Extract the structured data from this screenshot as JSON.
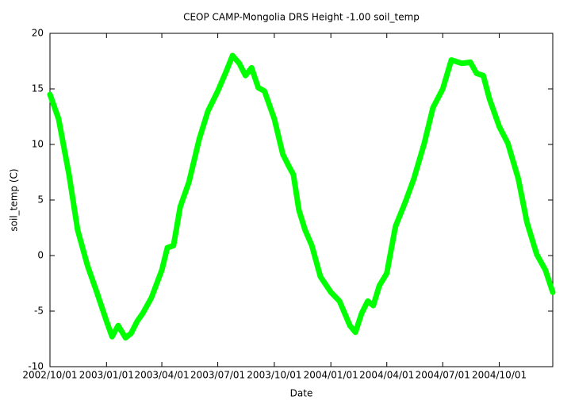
{
  "chart_data": {
    "type": "line",
    "title": "CEOP CAMP-Mongolia DRS Height -1.00 soil_temp",
    "xlabel": "Date",
    "ylabel": "soil_temp (C)",
    "color": "#00ff00",
    "x": [
      "2002-10-01",
      "2002-10-15",
      "2002-11-01",
      "2002-11-15",
      "2002-12-01",
      "2002-12-15",
      "2003-01-01",
      "2003-01-10",
      "2003-01-20",
      "2003-02-01",
      "2003-02-10",
      "2003-02-20",
      "2003-03-01",
      "2003-03-15",
      "2003-04-01",
      "2003-04-10",
      "2003-04-20",
      "2003-05-01",
      "2003-05-15",
      "2003-06-01",
      "2003-06-15",
      "2003-07-01",
      "2003-07-15",
      "2003-07-25",
      "2003-08-05",
      "2003-08-15",
      "2003-08-25",
      "2003-09-05",
      "2003-09-15",
      "2003-10-01",
      "2003-10-15",
      "2003-10-25",
      "2003-11-01",
      "2003-11-10",
      "2003-11-20",
      "2003-12-01",
      "2003-12-15",
      "2004-01-01",
      "2004-01-15",
      "2004-02-01",
      "2004-02-10",
      "2004-02-20",
      "2004-03-01",
      "2004-03-10",
      "2004-03-20",
      "2004-04-01",
      "2004-04-15",
      "2004-05-01",
      "2004-05-15",
      "2004-06-01",
      "2004-06-15",
      "2004-07-01",
      "2004-07-15",
      "2004-08-01",
      "2004-08-15",
      "2004-08-25",
      "2004-09-05",
      "2004-09-15",
      "2004-10-01",
      "2004-10-15",
      "2004-11-01",
      "2004-11-15",
      "2004-12-01",
      "2004-12-15",
      "2004-12-27"
    ],
    "values": [
      14.5,
      12.3,
      7.3,
      2.3,
      -0.9,
      -3.1,
      -5.9,
      -7.3,
      -6.3,
      -7.4,
      -7,
      -5.9,
      -5.2,
      -3.8,
      -1.3,
      0.7,
      0.9,
      4.4,
      6.6,
      10.5,
      13,
      14.8,
      16.6,
      18,
      17.3,
      16.2,
      16.9,
      15.1,
      14.8,
      12.3,
      9.1,
      8,
      7.3,
      4.1,
      2.3,
      0.9,
      -1.9,
      -3.3,
      -4.1,
      -6.3,
      -6.9,
      -5.2,
      -4.1,
      -4.5,
      -2.7,
      -1.6,
      2.6,
      4.8,
      6.9,
      10.1,
      13.3,
      15,
      17.6,
      17.3,
      17.4,
      16.4,
      16.2,
      14.1,
      11.6,
      10.1,
      6.9,
      3,
      0.1,
      -1.3,
      -3.3
    ],
    "xlim": [
      "2002-10-01",
      "2004-12-27"
    ],
    "xticks": [
      {
        "value": "2002-10-01",
        "label": "2002/10/01"
      },
      {
        "value": "2003-01-01",
        "label": "2003/01/01"
      },
      {
        "value": "2003-04-01",
        "label": "2003/04/01"
      },
      {
        "value": "2003-07-01",
        "label": "2003/07/01"
      },
      {
        "value": "2003-10-01",
        "label": "2003/10/01"
      },
      {
        "value": "2004-01-01",
        "label": "2004/01/01"
      },
      {
        "value": "2004-04-01",
        "label": "2004/04/01"
      },
      {
        "value": "2004-07-01",
        "label": "2004/07/01"
      },
      {
        "value": "2004-10-01",
        "label": "2004/10/01"
      }
    ],
    "ylim": [
      -10,
      20
    ],
    "yticks": [
      -10,
      -5,
      0,
      5,
      10,
      15,
      20
    ]
  }
}
